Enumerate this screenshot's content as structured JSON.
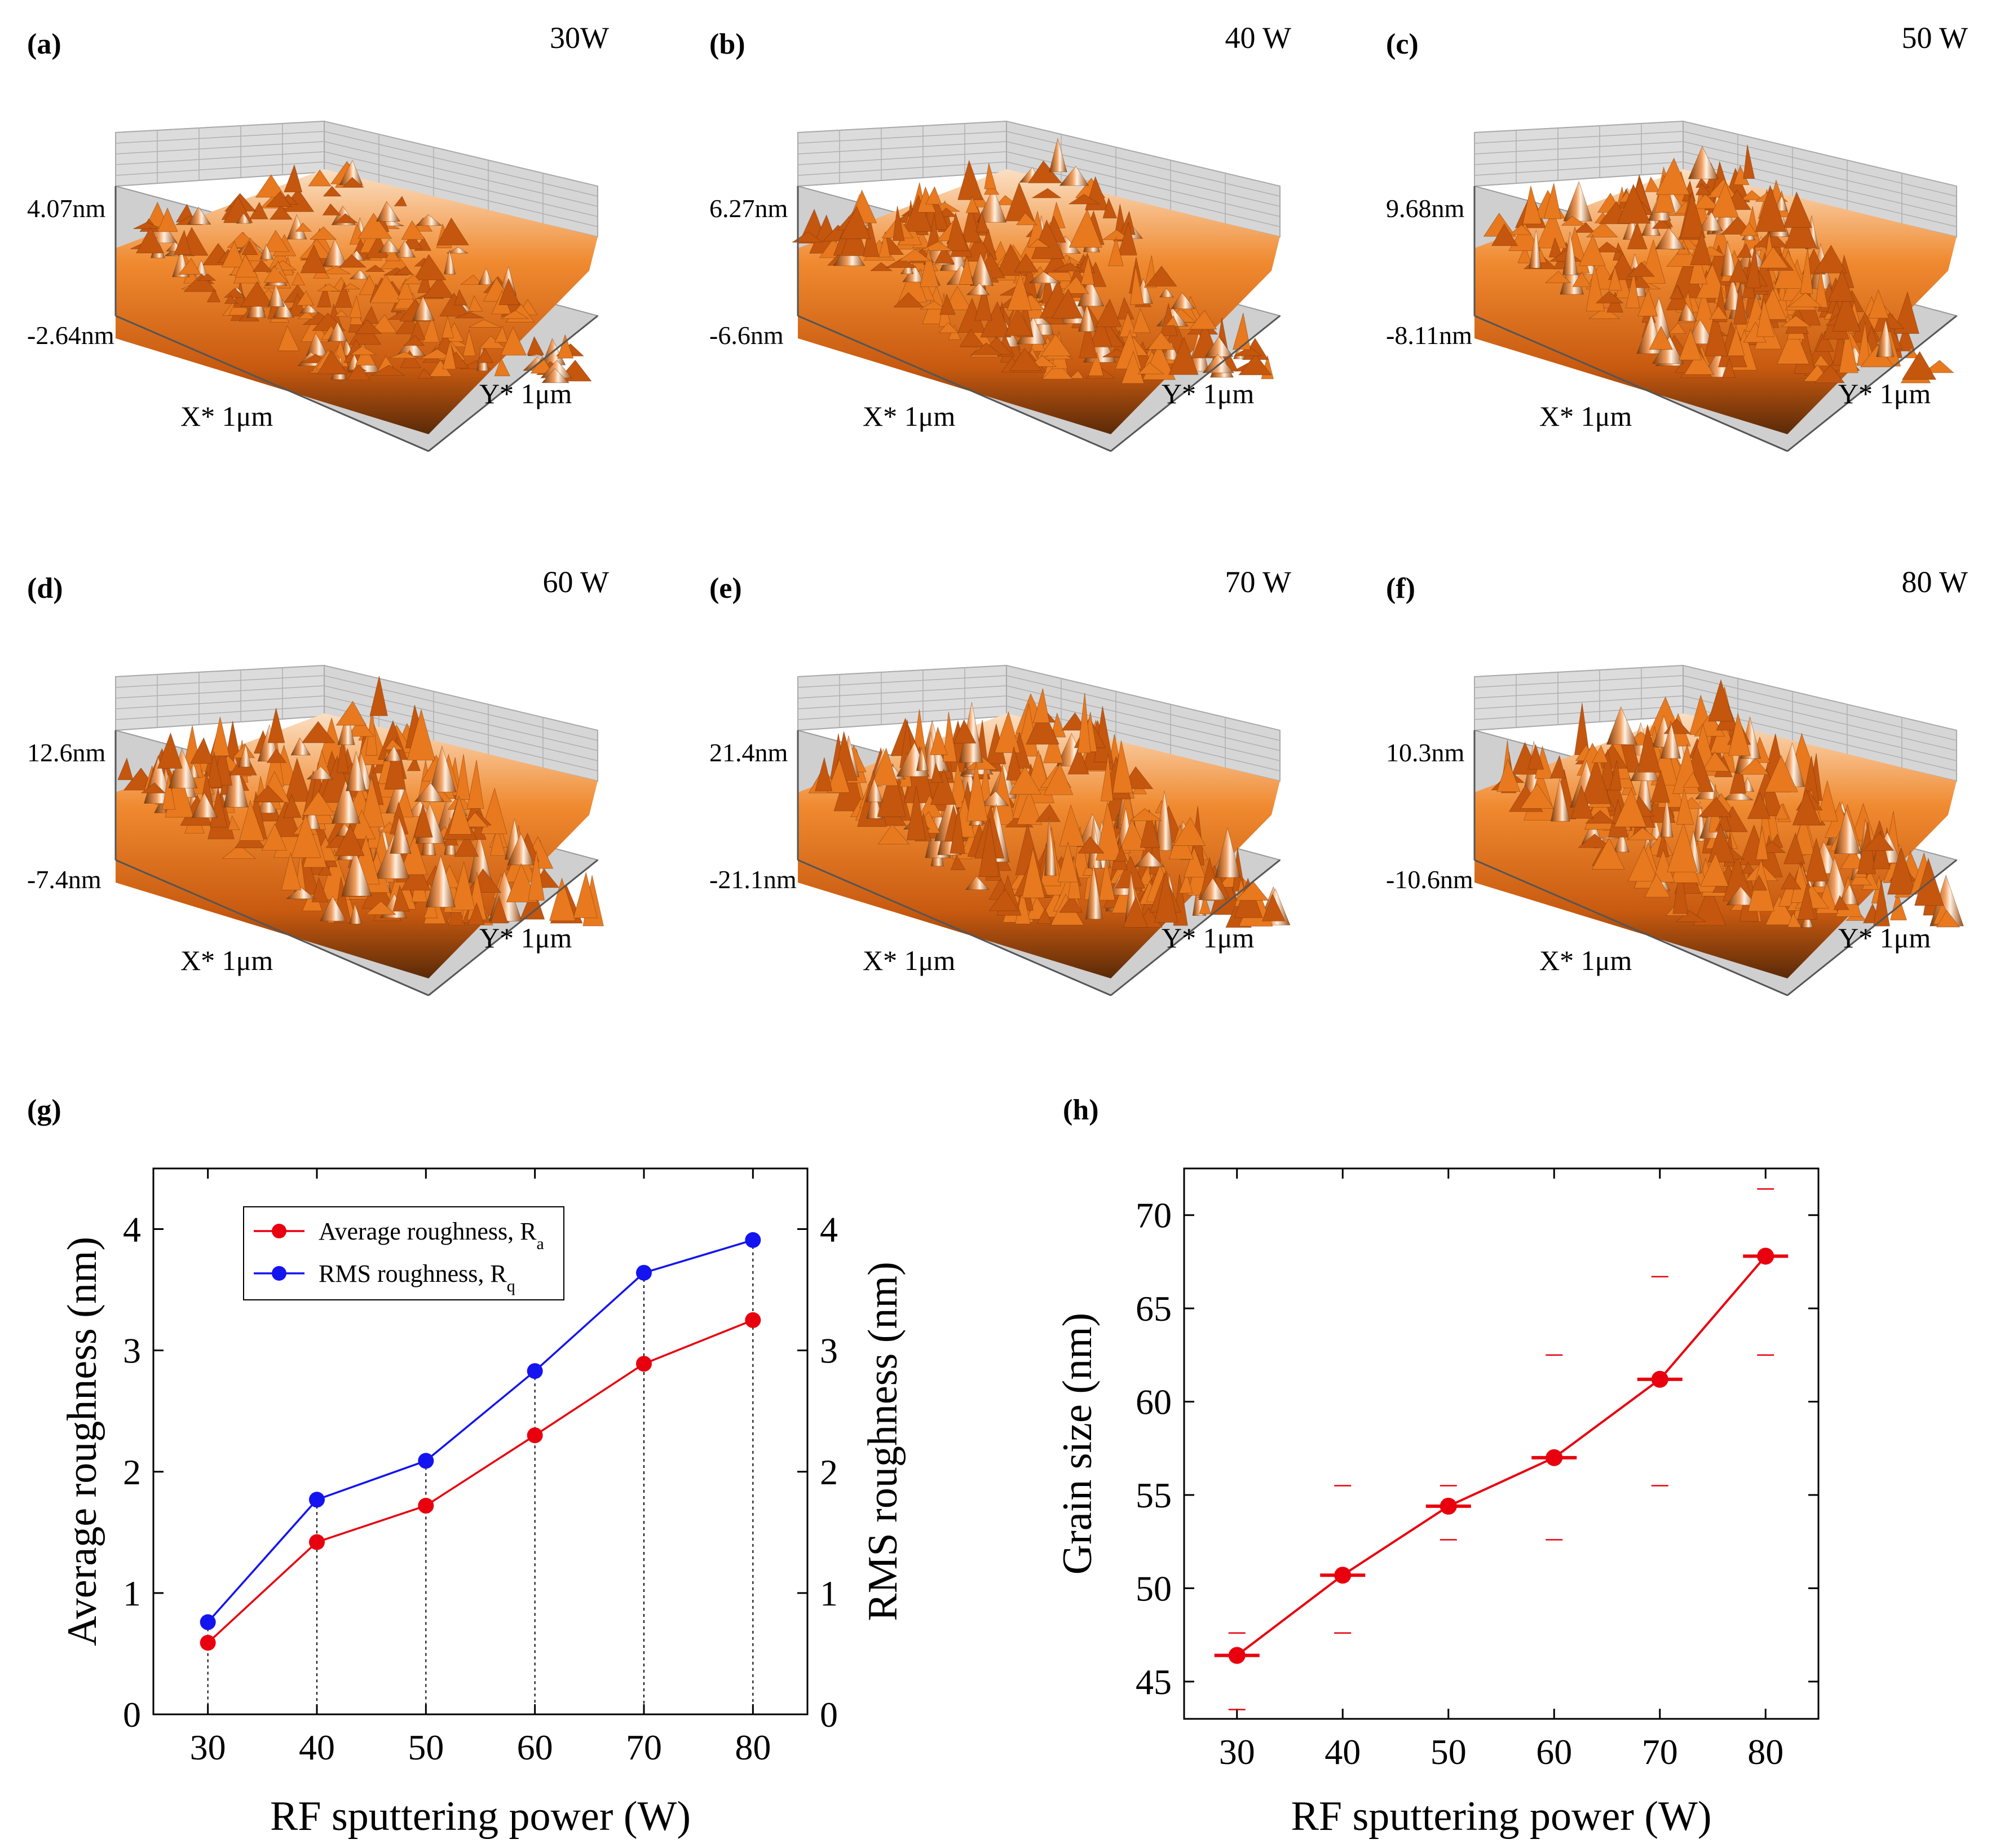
{
  "afm_panels": [
    {
      "label": "(a)",
      "power": "30W",
      "z_max": "4.07nm",
      "z_min": "-2.64nm",
      "x_axis": "X* 1μm",
      "y_axis": "Y* 1μm"
    },
    {
      "label": "(b)",
      "power": "40 W",
      "z_max": "6.27nm",
      "z_min": "-6.6nm",
      "x_axis": "X* 1μm",
      "y_axis": "Y* 1μm"
    },
    {
      "label": "(c)",
      "power": "50 W",
      "z_max": "9.68nm",
      "z_min": "-8.11nm",
      "x_axis": "X* 1μm",
      "y_axis": "Y* 1μm"
    },
    {
      "label": "(d)",
      "power": "60 W",
      "z_max": "12.6nm",
      "z_min": "-7.4nm",
      "x_axis": "X* 1μm",
      "y_axis": "Y* 1μm"
    },
    {
      "label": "(e)",
      "power": "70 W",
      "z_max": "21.4nm",
      "z_min": "-21.1nm",
      "x_axis": "X* 1μm",
      "y_axis": "Y* 1μm"
    },
    {
      "label": "(f)",
      "power": "80 W",
      "z_max": "10.3nm",
      "z_min": "-10.6nm",
      "x_axis": "X* 1μm",
      "y_axis": "Y* 1μm"
    }
  ],
  "colors": {
    "surface_dark": "#5a2a08",
    "surface_mid": "#e8791e",
    "surface_light": "#fbe0c4",
    "red": "#e8000e",
    "blue": "#1414f0",
    "grid": "#9a9a9a"
  },
  "chart_data": [
    {
      "type": "line",
      "panel": "(g)",
      "xlabel": "RF sputtering power (W)",
      "ylabel": "Average roughness (nm)",
      "ylabel_right": "RMS roughness (nm)",
      "x": [
        30,
        40,
        50,
        60,
        70,
        80
      ],
      "xticks": [
        "30",
        "40",
        "50",
        "60",
        "70",
        "80"
      ],
      "xlim": [
        25,
        85
      ],
      "yticks": [
        "0",
        "1",
        "2",
        "3",
        "4"
      ],
      "ylim": [
        0,
        4.5
      ],
      "ylim_right": [
        0,
        4.5
      ],
      "series": [
        {
          "name": "Average roughness, R",
          "sub": "a",
          "axis": "left",
          "color": "#e8000e",
          "values": [
            0.59,
            1.42,
            1.72,
            2.3,
            2.89,
            3.25
          ]
        },
        {
          "name": "RMS roughness, R",
          "sub": "q",
          "axis": "right",
          "color": "#1414f0",
          "values": [
            0.76,
            1.77,
            2.09,
            2.83,
            3.64,
            3.91
          ]
        }
      ],
      "legend_position": "top-left"
    },
    {
      "type": "line",
      "panel": "(h)",
      "xlabel": "RF sputtering power (W)",
      "ylabel": "Grain size (nm)",
      "x": [
        30,
        40,
        50,
        60,
        70,
        80
      ],
      "xticks": [
        "30",
        "40",
        "50",
        "60",
        "70",
        "80"
      ],
      "xlim": [
        25,
        85
      ],
      "yticks": [
        "45",
        "50",
        "55",
        "60",
        "65",
        "70"
      ],
      "ylim": [
        43,
        72.5
      ],
      "series": [
        {
          "name": "Grain size",
          "color": "#e8000e",
          "values": [
            46.4,
            50.7,
            54.4,
            57.0,
            61.2,
            67.8
          ],
          "upper": [
            47.6,
            55.5,
            55.5,
            62.5,
            66.7,
            71.4
          ],
          "lower": [
            43.5,
            47.6,
            52.6,
            52.6,
            55.5,
            62.5
          ]
        }
      ]
    }
  ]
}
